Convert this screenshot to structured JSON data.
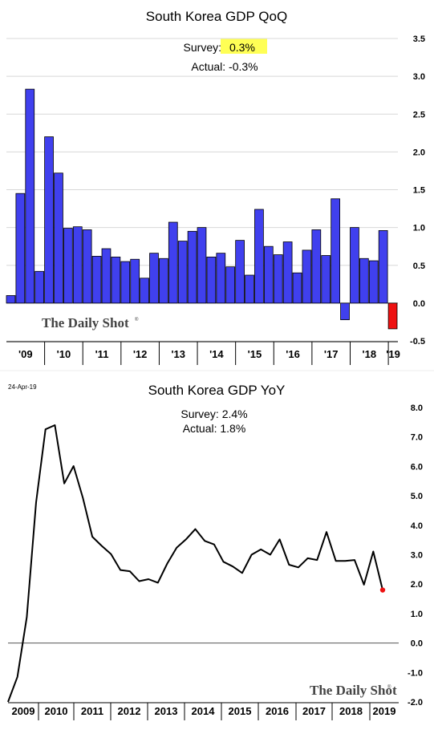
{
  "colors": {
    "bar": "#4040ee",
    "bar_negative": "#ee1111",
    "highlight": "#ffff55",
    "line": "#000000",
    "last_point": "#ee1111",
    "grid": "#d8d8d8"
  },
  "logo_text": "The Daily Shot",
  "chart_data": [
    {
      "type": "bar",
      "title": "South Korea GDP QoQ",
      "survey_label": "Survey:",
      "survey_value": "0.3%",
      "actual_text": "Actual:  -0.3%",
      "ylim": [
        -0.5,
        3.5
      ],
      "yticks": [
        "3.5",
        "3.0",
        "2.5",
        "2.0",
        "1.5",
        "1.0",
        "0.5",
        "0.0",
        "-0.5"
      ],
      "x_labels": [
        "'09",
        "'10",
        "'11",
        "'12",
        "'13",
        "'14",
        "'15",
        "'16",
        "'17",
        "'18",
        "'19"
      ],
      "values": [
        0.1,
        1.45,
        2.83,
        0.42,
        2.2,
        1.72,
        0.99,
        1.01,
        0.97,
        0.62,
        0.72,
        0.61,
        0.55,
        0.58,
        0.33,
        0.66,
        0.59,
        1.07,
        0.82,
        0.95,
        1.0,
        0.61,
        0.66,
        0.48,
        0.83,
        0.37,
        1.24,
        0.75,
        0.64,
        0.81,
        0.4,
        0.7,
        0.97,
        0.63,
        1.38,
        -0.22,
        1.0,
        0.59,
        0.56,
        0.96,
        -0.34
      ]
    },
    {
      "type": "line",
      "title": "South Korea GDP YoY",
      "date_label": "24-Apr-19",
      "survey_text": "Survey: 2.4%",
      "actual_text": "Actual:  1.8%",
      "ylim": [
        -2.0,
        8.0
      ],
      "yticks": [
        "8.0",
        "7.0",
        "6.0",
        "5.0",
        "4.0",
        "3.0",
        "2.0",
        "1.0",
        "0.0",
        "-1.0",
        "-2.0"
      ],
      "x_labels": [
        "2009",
        "2010",
        "2011",
        "2012",
        "2013",
        "2014",
        "2015",
        "2016",
        "2017",
        "2018",
        "2019"
      ],
      "values": [
        -2.0,
        -1.15,
        0.88,
        4.78,
        7.26,
        7.4,
        5.42,
        6.01,
        4.92,
        3.61,
        3.3,
        3.02,
        2.48,
        2.44,
        2.1,
        2.17,
        2.05,
        2.7,
        3.24,
        3.52,
        3.87,
        3.47,
        3.35,
        2.76,
        2.6,
        2.38,
        3.0,
        3.18,
        3.0,
        3.52,
        2.66,
        2.57,
        2.88,
        2.82,
        3.77,
        2.79,
        2.79,
        2.82,
        1.98,
        3.11,
        1.8
      ]
    }
  ]
}
